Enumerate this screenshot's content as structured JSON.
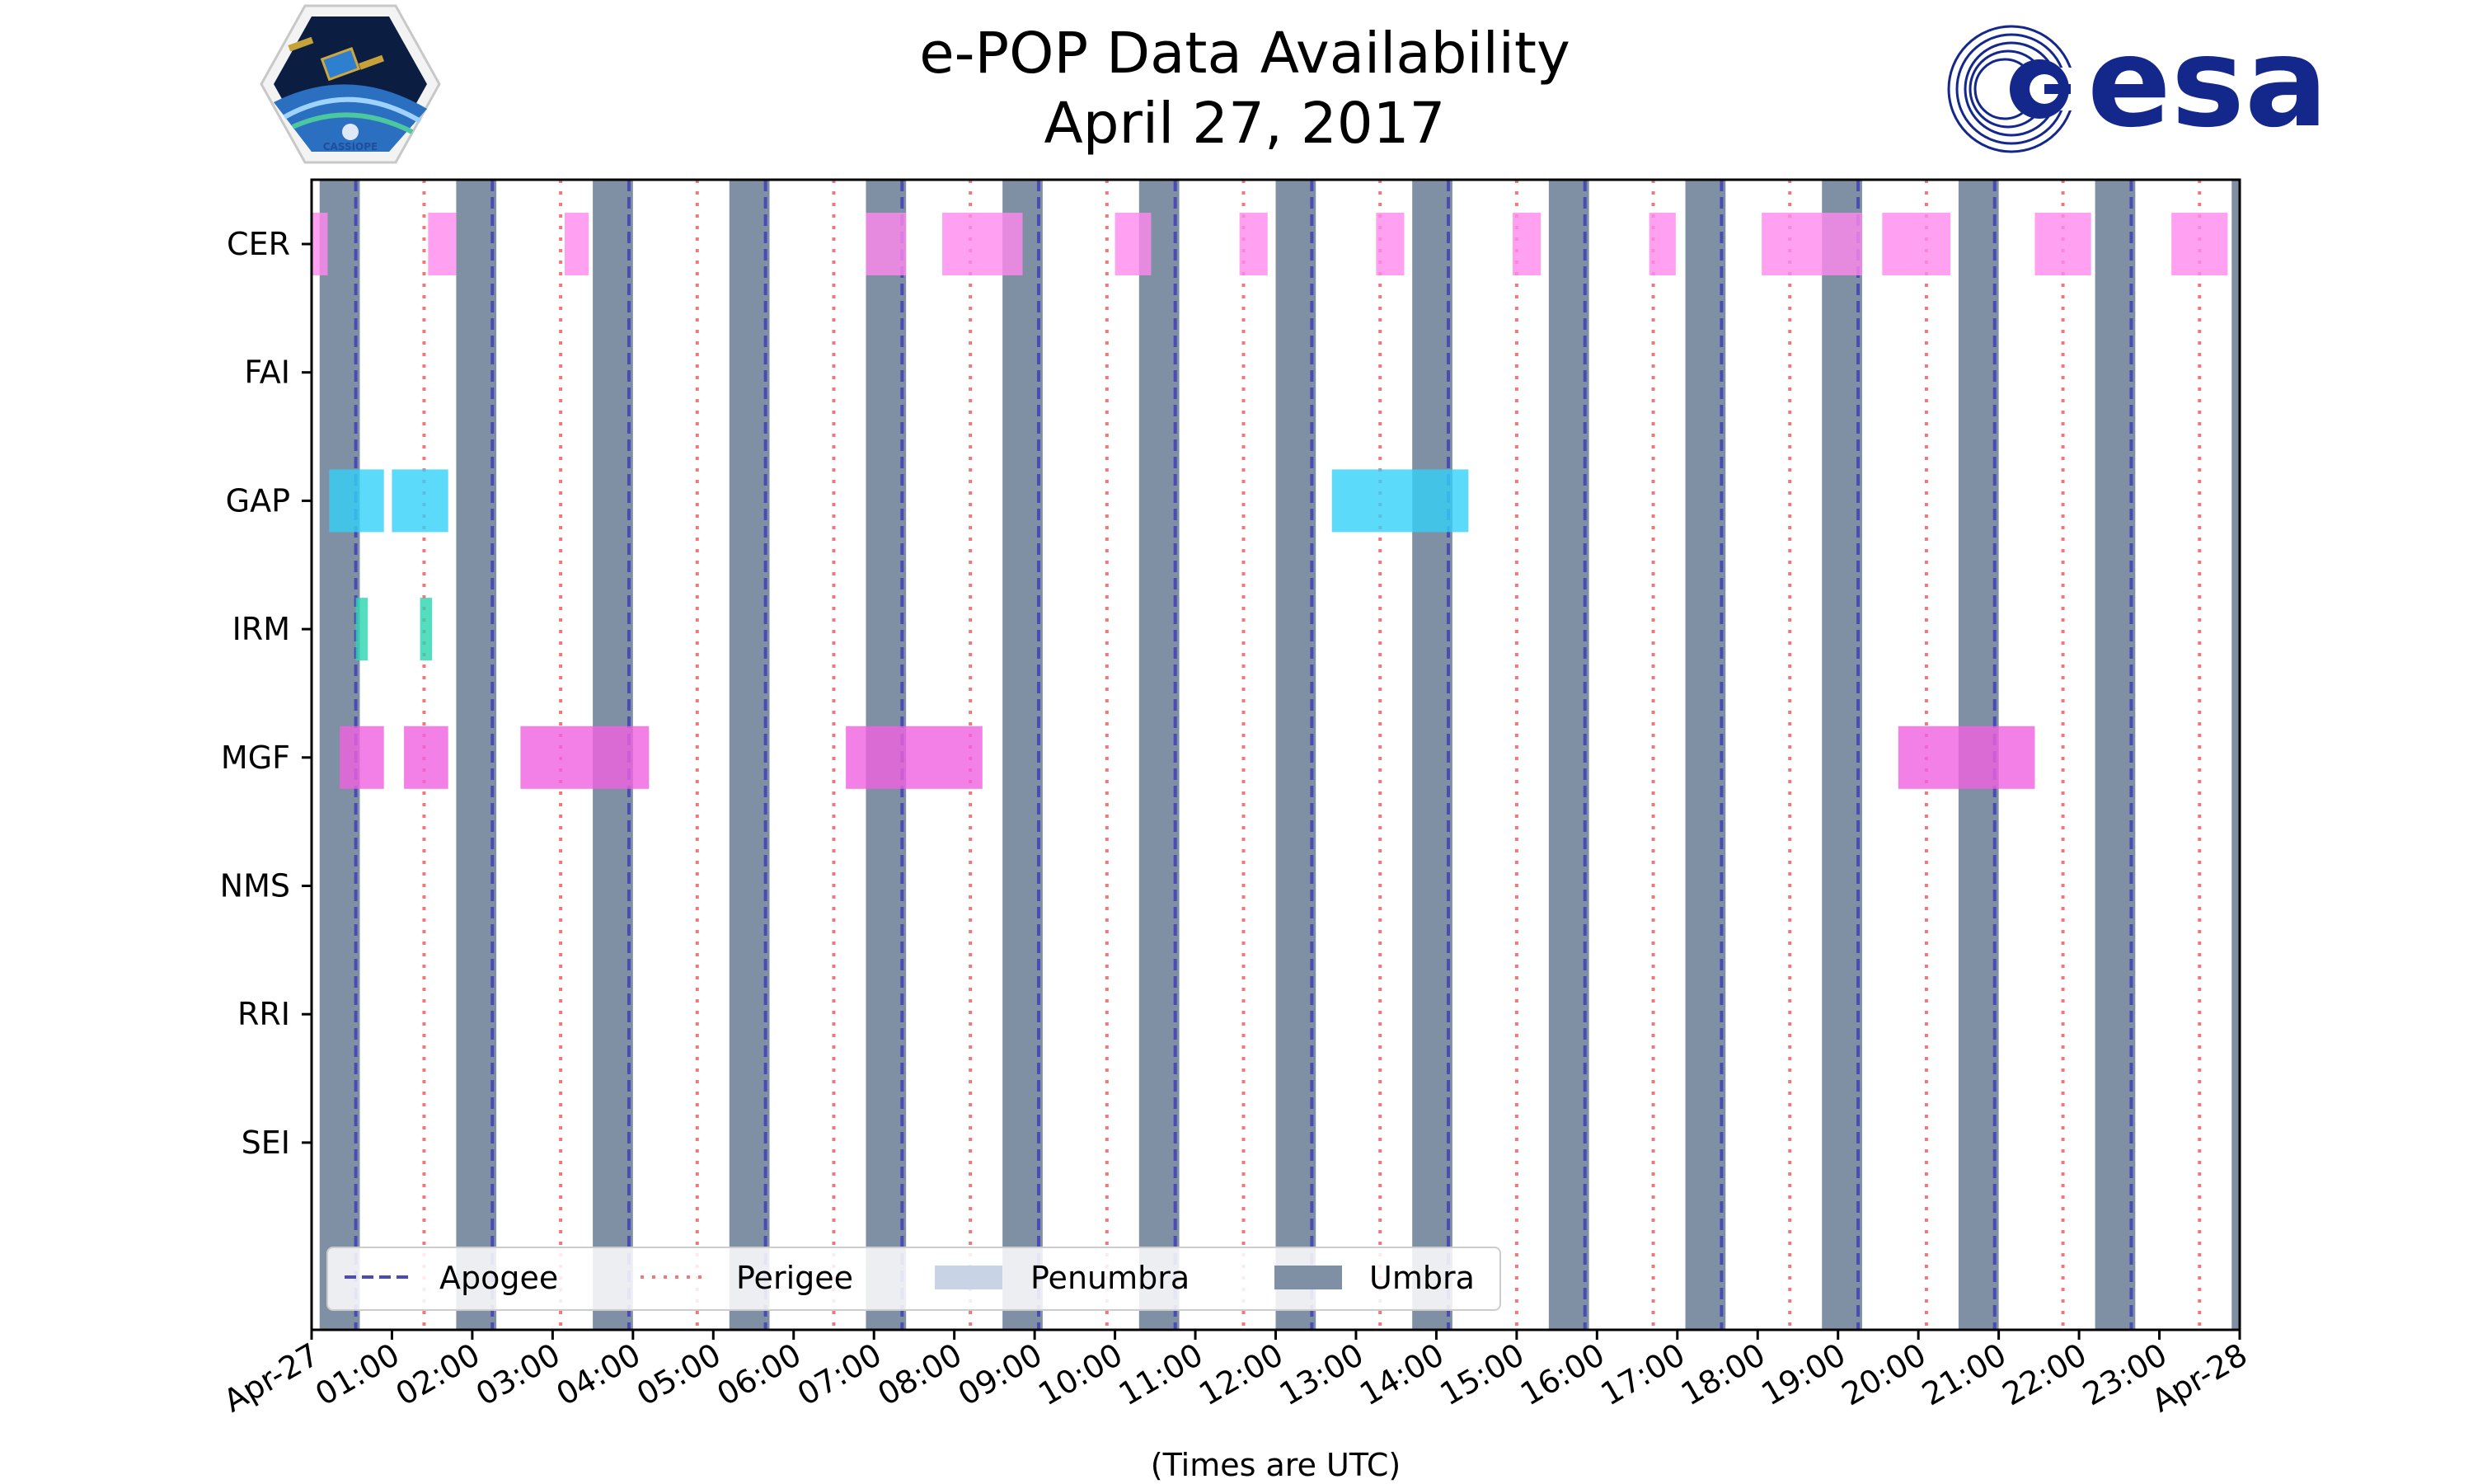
{
  "title": {
    "line1": "e-POP Data Availability",
    "line2": "April 27, 2017"
  },
  "logos": {
    "left": {
      "name": "CASSIOPE mission patch",
      "text": "CASSIOPE"
    },
    "right": {
      "name": "ESA logo",
      "text": "esa",
      "color": "#14288c"
    }
  },
  "chart_data": {
    "type": "timeline",
    "title": "e-POP Data Availability April 27, 2017",
    "xlabel": "(Times are UTC)",
    "ylabel": "",
    "x_unit": "hours UTC (Apr-27 00:00 = 0)",
    "xlim": [
      0,
      24
    ],
    "x_ticks": [
      "Apr-27",
      "01:00",
      "02:00",
      "03:00",
      "04:00",
      "05:00",
      "06:00",
      "07:00",
      "08:00",
      "09:00",
      "10:00",
      "11:00",
      "12:00",
      "13:00",
      "14:00",
      "15:00",
      "16:00",
      "17:00",
      "18:00",
      "19:00",
      "20:00",
      "21:00",
      "22:00",
      "23:00",
      "Apr-28"
    ],
    "instruments": [
      "CER",
      "FAI",
      "GAP",
      "IRM",
      "MGF",
      "NMS",
      "RRI",
      "SEI"
    ],
    "grid": false,
    "legend": {
      "placement": "bottom-left",
      "entries": [
        {
          "label": "Apogee",
          "style": "dashed",
          "color": "#4b4bb4"
        },
        {
          "label": "Perigee",
          "style": "dotted",
          "color": "#f07878"
        },
        {
          "label": "Penumbra",
          "style": "patch",
          "color": "#c8d4e6"
        },
        {
          "label": "Umbra",
          "style": "patch",
          "color": "#8090a4"
        }
      ]
    },
    "umbra": [
      [
        0.1,
        0.6
      ],
      [
        1.8,
        2.3
      ],
      [
        3.5,
        4.0
      ],
      [
        5.2,
        5.7
      ],
      [
        6.9,
        7.4
      ],
      [
        8.6,
        9.1
      ],
      [
        10.3,
        10.8
      ],
      [
        12.0,
        12.5
      ],
      [
        13.7,
        14.2
      ],
      [
        15.4,
        15.9
      ],
      [
        17.1,
        17.6
      ],
      [
        18.8,
        19.3
      ],
      [
        20.5,
        21.0
      ],
      [
        22.2,
        22.7
      ],
      [
        23.9,
        24.0
      ]
    ],
    "apogee": [
      0.55,
      2.25,
      3.95,
      5.65,
      7.35,
      9.05,
      10.75,
      12.45,
      14.15,
      15.85,
      17.55,
      19.25,
      20.95,
      22.65
    ],
    "perigee": [
      1.4,
      3.1,
      4.8,
      6.5,
      8.2,
      9.9,
      11.6,
      13.3,
      15.0,
      16.7,
      18.4,
      20.1,
      21.8,
      23.5
    ],
    "series": [
      {
        "name": "CER",
        "color": "#ff88ee",
        "intervals": [
          [
            0.0,
            0.2
          ],
          [
            1.45,
            1.8
          ],
          [
            3.15,
            3.45
          ],
          [
            6.9,
            7.4
          ],
          [
            7.85,
            8.85
          ],
          [
            10.0,
            10.45
          ],
          [
            11.55,
            11.9
          ],
          [
            13.25,
            13.6
          ],
          [
            14.95,
            15.3
          ],
          [
            16.65,
            16.98
          ],
          [
            18.05,
            19.3
          ],
          [
            19.55,
            20.4
          ],
          [
            21.45,
            22.15
          ],
          [
            23.15,
            23.85
          ]
        ]
      },
      {
        "name": "FAI",
        "color": "#ff88ee",
        "intervals": []
      },
      {
        "name": "GAP",
        "color": "#33d1f7",
        "intervals": [
          [
            0.22,
            0.9
          ],
          [
            1.0,
            1.7
          ],
          [
            12.7,
            14.4
          ]
        ]
      },
      {
        "name": "IRM",
        "color": "#2ad4b0",
        "intervals": [
          [
            0.55,
            0.7
          ],
          [
            1.35,
            1.5
          ]
        ]
      },
      {
        "name": "MGF",
        "color": "#f060e0",
        "intervals": [
          [
            0.35,
            0.9
          ],
          [
            1.15,
            1.7
          ],
          [
            2.6,
            4.2
          ],
          [
            6.65,
            8.35
          ],
          [
            19.75,
            21.45
          ]
        ]
      },
      {
        "name": "NMS",
        "color": "#ff88ee",
        "intervals": []
      },
      {
        "name": "RRI",
        "color": "#ff88ee",
        "intervals": []
      },
      {
        "name": "SEI",
        "color": "#ff88ee",
        "intervals": []
      }
    ]
  }
}
